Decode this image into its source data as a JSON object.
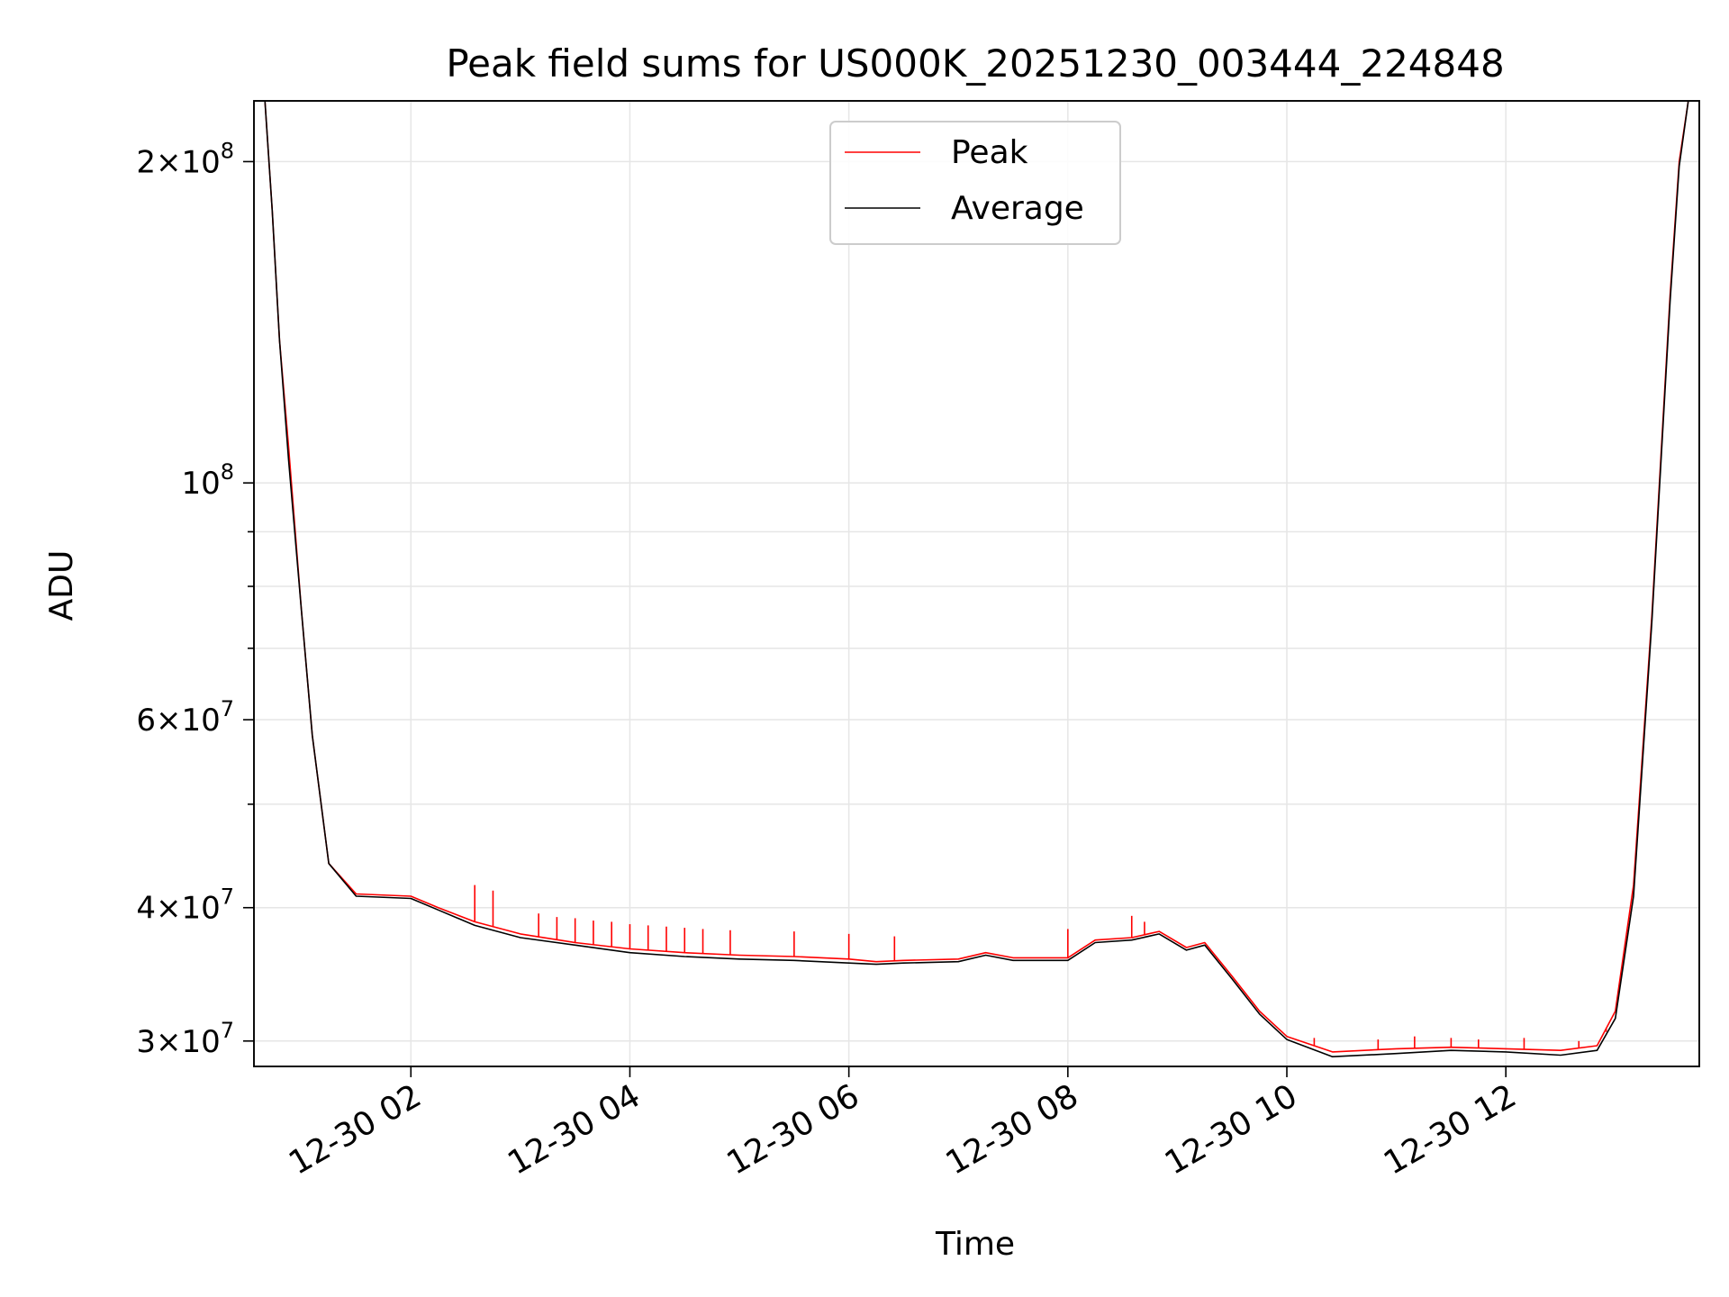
{
  "chart_data": {
    "type": "line",
    "title": "Peak field sums for US000K_20251230_003444_224848",
    "xlabel": "Time",
    "ylabel": "ADU",
    "y_scale": "log",
    "grid": true,
    "legend_position": "upper center",
    "x_tick_labels": [
      "12-30 02",
      "12-30 04",
      "12-30 06",
      "12-30 08",
      "12-30 10",
      "12-30 12"
    ],
    "x_ticks": [
      "2025-12-30 02:00",
      "2025-12-30 04:00",
      "2025-12-30 06:00",
      "2025-12-30 08:00",
      "2025-12-30 10:00",
      "2025-12-30 12:00"
    ],
    "xlim": [
      "2025-12-30 00:34",
      "2025-12-30 13:46"
    ],
    "ylim": [
      28400000,
      228000000
    ],
    "y_major_ticks": [
      {
        "value": 30000000,
        "mant": "3",
        "exp": "7"
      },
      {
        "value": 40000000,
        "mant": "4",
        "exp": "7"
      },
      {
        "value": 60000000,
        "mant": "6",
        "exp": "7"
      },
      {
        "value": 100000000,
        "mant": "",
        "exp": "8"
      },
      {
        "value": 200000000,
        "mant": "2",
        "exp": "8"
      }
    ],
    "y_minor_ticks": [
      50000000,
      70000000,
      80000000,
      90000000
    ],
    "series": [
      {
        "name": "Peak",
        "color": "#ff0000",
        "x": [
          "2025-12-30 00:40",
          "2025-12-30 00:44",
          "2025-12-30 00:48",
          "2025-12-30 00:53",
          "2025-12-30 01:00",
          "2025-12-30 01:06",
          "2025-12-30 01:15",
          "2025-12-30 01:30",
          "2025-12-30 02:00",
          "2025-12-30 02:15",
          "2025-12-30 02:35",
          "2025-12-30 03:00",
          "2025-12-30 03:30",
          "2025-12-30 04:00",
          "2025-12-30 04:30",
          "2025-12-30 05:00",
          "2025-12-30 05:30",
          "2025-12-30 06:00",
          "2025-12-30 06:15",
          "2025-12-30 06:30",
          "2025-12-30 07:00",
          "2025-12-30 07:15",
          "2025-12-30 07:30",
          "2025-12-30 08:00",
          "2025-12-30 08:15",
          "2025-12-30 08:35",
          "2025-12-30 08:50",
          "2025-12-30 09:05",
          "2025-12-30 09:15",
          "2025-12-30 09:30",
          "2025-12-30 09:45",
          "2025-12-30 10:00",
          "2025-12-30 10:25",
          "2025-12-30 11:00",
          "2025-12-30 11:30",
          "2025-12-30 12:00",
          "2025-12-30 12:30",
          "2025-12-30 12:50",
          "2025-12-30 13:00",
          "2025-12-30 13:10",
          "2025-12-30 13:20",
          "2025-12-30 13:30",
          "2025-12-30 13:35",
          "2025-12-30 13:40"
        ],
        "y": [
          228000000,
          180000000,
          136000000,
          108000000,
          76000000,
          58000000,
          44000000,
          41200000,
          41000000,
          40000000,
          38800000,
          37800000,
          37100000,
          36600000,
          36300000,
          36100000,
          36000000,
          35800000,
          35600000,
          35700000,
          35800000,
          36300000,
          35900000,
          35900000,
          37300000,
          37500000,
          38000000,
          36700000,
          37100000,
          34500000,
          32000000,
          30300000,
          29300000,
          29500000,
          29600000,
          29500000,
          29400000,
          29700000,
          32000000,
          42000000,
          75000000,
          150000000,
          200000000,
          228000000
        ],
        "spikes": [
          {
            "x": "2025-12-30 02:35",
            "y": 42000000
          },
          {
            "x": "2025-12-30 02:45",
            "y": 41500000
          },
          {
            "x": "2025-12-30 03:10",
            "y": 39500000
          },
          {
            "x": "2025-12-30 03:20",
            "y": 39200000
          },
          {
            "x": "2025-12-30 03:30",
            "y": 39100000
          },
          {
            "x": "2025-12-30 03:40",
            "y": 38900000
          },
          {
            "x": "2025-12-30 03:50",
            "y": 38800000
          },
          {
            "x": "2025-12-30 04:00",
            "y": 38600000
          },
          {
            "x": "2025-12-30 04:10",
            "y": 38500000
          },
          {
            "x": "2025-12-30 04:20",
            "y": 38400000
          },
          {
            "x": "2025-12-30 04:30",
            "y": 38300000
          },
          {
            "x": "2025-12-30 04:40",
            "y": 38200000
          },
          {
            "x": "2025-12-30 04:55",
            "y": 38100000
          },
          {
            "x": "2025-12-30 05:30",
            "y": 38000000
          },
          {
            "x": "2025-12-30 06:00",
            "y": 37800000
          },
          {
            "x": "2025-12-30 06:25",
            "y": 37600000
          },
          {
            "x": "2025-12-30 08:00",
            "y": 38200000
          },
          {
            "x": "2025-12-30 08:35",
            "y": 39300000
          },
          {
            "x": "2025-12-30 08:42",
            "y": 38800000
          },
          {
            "x": "2025-12-30 10:15",
            "y": 30200000
          },
          {
            "x": "2025-12-30 10:50",
            "y": 30100000
          },
          {
            "x": "2025-12-30 11:10",
            "y": 30300000
          },
          {
            "x": "2025-12-30 11:30",
            "y": 30200000
          },
          {
            "x": "2025-12-30 11:45",
            "y": 30100000
          },
          {
            "x": "2025-12-30 12:10",
            "y": 30200000
          },
          {
            "x": "2025-12-30 12:40",
            "y": 30000000
          },
          {
            "x": "2025-12-30 12:55",
            "y": 30600000
          }
        ]
      },
      {
        "name": "Average",
        "color": "#000000",
        "x": [
          "2025-12-30 00:40",
          "2025-12-30 00:44",
          "2025-12-30 00:48",
          "2025-12-30 00:53",
          "2025-12-30 01:00",
          "2025-12-30 01:06",
          "2025-12-30 01:15",
          "2025-12-30 01:30",
          "2025-12-30 02:00",
          "2025-12-30 02:15",
          "2025-12-30 02:35",
          "2025-12-30 03:00",
          "2025-12-30 03:30",
          "2025-12-30 04:00",
          "2025-12-30 04:30",
          "2025-12-30 05:00",
          "2025-12-30 05:30",
          "2025-12-30 06:00",
          "2025-12-30 06:15",
          "2025-12-30 06:30",
          "2025-12-30 07:00",
          "2025-12-30 07:15",
          "2025-12-30 07:30",
          "2025-12-30 08:00",
          "2025-12-30 08:15",
          "2025-12-30 08:35",
          "2025-12-30 08:50",
          "2025-12-30 09:05",
          "2025-12-30 09:15",
          "2025-12-30 09:30",
          "2025-12-30 09:45",
          "2025-12-30 10:00",
          "2025-12-30 10:25",
          "2025-12-30 11:00",
          "2025-12-30 11:30",
          "2025-12-30 12:00",
          "2025-12-30 12:30",
          "2025-12-30 12:50",
          "2025-12-30 13:00",
          "2025-12-30 13:10",
          "2025-12-30 13:20",
          "2025-12-30 13:30",
          "2025-12-30 13:35",
          "2025-12-30 13:40"
        ],
        "y": [
          228000000,
          180000000,
          136000000,
          105000000,
          76000000,
          58000000,
          44000000,
          41000000,
          40800000,
          39800000,
          38500000,
          37500000,
          36900000,
          36300000,
          36000000,
          35800000,
          35700000,
          35500000,
          35400000,
          35500000,
          35600000,
          36100000,
          35700000,
          35700000,
          37100000,
          37300000,
          37800000,
          36500000,
          36900000,
          34300000,
          31800000,
          30100000,
          29000000,
          29200000,
          29400000,
          29300000,
          29100000,
          29400000,
          31500000,
          41000000,
          74000000,
          148000000,
          198000000,
          228000000
        ]
      }
    ]
  }
}
